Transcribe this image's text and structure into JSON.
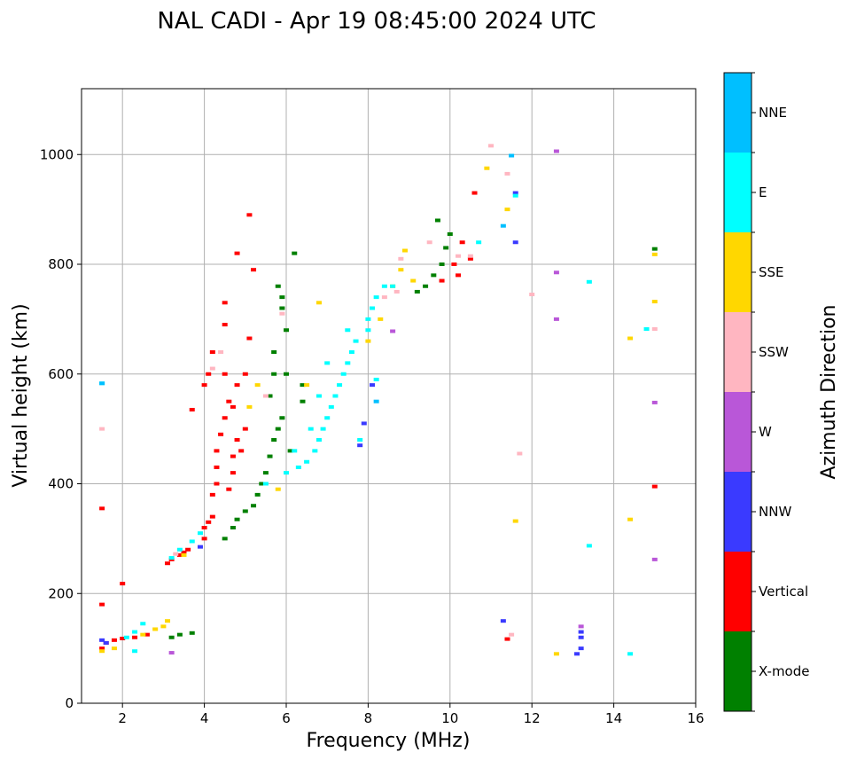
{
  "chart_data": {
    "type": "scatter",
    "title": "NAL CADI - Apr 19 08:45:00 2024 UTC",
    "xlabel": "Frequency (MHz)",
    "ylabel": "Virtual height (km)",
    "xlim": [
      1,
      16
    ],
    "ylim": [
      0,
      1120
    ],
    "xticks": [
      2,
      4,
      6,
      8,
      10,
      12,
      14,
      16
    ],
    "yticks": [
      0,
      200,
      400,
      600,
      800,
      1000
    ],
    "grid": true,
    "colorbar": {
      "label": "Azimuth Direction",
      "categories": [
        {
          "name": "X-mode",
          "color": "#008000"
        },
        {
          "name": "Vertical",
          "color": "#ff0000"
        },
        {
          "name": "NNW",
          "color": "#3a3aff"
        },
        {
          "name": "W",
          "color": "#b957d8"
        },
        {
          "name": "SSW",
          "color": "#ffb6c1"
        },
        {
          "name": "SSE",
          "color": "#ffd700"
        },
        {
          "name": "E",
          "color": "#00ffff"
        },
        {
          "name": "NNE",
          "color": "#00bfff"
        }
      ]
    },
    "series": [
      {
        "name": "Vertical",
        "points": [
          [
            1.5,
            100
          ],
          [
            1.6,
            110
          ],
          [
            1.8,
            115
          ],
          [
            2,
            118
          ],
          [
            2.3,
            120
          ],
          [
            2.6,
            125
          ],
          [
            3.1,
            255
          ],
          [
            3.2,
            262
          ],
          [
            3.4,
            270
          ],
          [
            3.5,
            275
          ],
          [
            3.6,
            280
          ],
          [
            4,
            300
          ],
          [
            4,
            320
          ],
          [
            4.1,
            330
          ],
          [
            4.2,
            340
          ],
          [
            4.2,
            380
          ],
          [
            4.3,
            400
          ],
          [
            4.3,
            430
          ],
          [
            4.3,
            460
          ],
          [
            4.4,
            490
          ],
          [
            4.6,
            390
          ],
          [
            4.7,
            420
          ],
          [
            4.7,
            450
          ],
          [
            4.8,
            480
          ],
          [
            4.9,
            460
          ],
          [
            4.5,
            520
          ],
          [
            4.7,
            540
          ],
          [
            4.8,
            580
          ],
          [
            5,
            600
          ],
          [
            4,
            580
          ],
          [
            4.1,
            600
          ],
          [
            4.2,
            640
          ],
          [
            4.5,
            600
          ],
          [
            4.5,
            730
          ],
          [
            4.5,
            690
          ],
          [
            4.8,
            820
          ],
          [
            5.1,
            890
          ],
          [
            5.1,
            665
          ],
          [
            5.2,
            790
          ],
          [
            4.6,
            550
          ],
          [
            5,
            500
          ],
          [
            3.7,
            535
          ],
          [
            10.1,
            800
          ],
          [
            10.3,
            840
          ],
          [
            10.2,
            780
          ],
          [
            9.8,
            770
          ],
          [
            10.5,
            810
          ],
          [
            10.6,
            930
          ],
          [
            1.5,
            355
          ],
          [
            2,
            218
          ],
          [
            1.5,
            180
          ],
          [
            11.4,
            117
          ],
          [
            15,
            395
          ]
        ]
      },
      {
        "name": "X-mode",
        "points": [
          [
            3.2,
            120
          ],
          [
            3.4,
            125
          ],
          [
            3.7,
            128
          ],
          [
            4.5,
            300
          ],
          [
            4.7,
            320
          ],
          [
            4.8,
            335
          ],
          [
            5,
            350
          ],
          [
            5.2,
            360
          ],
          [
            5.3,
            380
          ],
          [
            5.4,
            400
          ],
          [
            5.5,
            420
          ],
          [
            5.6,
            450
          ],
          [
            5.7,
            480
          ],
          [
            5.8,
            500
          ],
          [
            5.9,
            520
          ],
          [
            5.6,
            560
          ],
          [
            5.7,
            600
          ],
          [
            5.7,
            640
          ],
          [
            6,
            680
          ],
          [
            5.9,
            720
          ],
          [
            5.8,
            760
          ],
          [
            5.9,
            740
          ],
          [
            6.2,
            820
          ],
          [
            6.4,
            580
          ],
          [
            6.4,
            550
          ],
          [
            6,
            600
          ],
          [
            9.2,
            750
          ],
          [
            9.4,
            760
          ],
          [
            9.6,
            780
          ],
          [
            9.8,
            800
          ],
          [
            9.9,
            830
          ],
          [
            10,
            855
          ],
          [
            9.7,
            880
          ],
          [
            15,
            828
          ],
          [
            6.1,
            460
          ]
        ]
      },
      {
        "name": "NNW",
        "points": [
          [
            1.5,
            115
          ],
          [
            1.6,
            110
          ],
          [
            3.9,
            285
          ],
          [
            7.8,
            470
          ],
          [
            8.1,
            580
          ],
          [
            7.9,
            510
          ],
          [
            11.6,
            840
          ],
          [
            11.3,
            150
          ],
          [
            13.2,
            120
          ],
          [
            13.2,
            100
          ],
          [
            13.2,
            130
          ],
          [
            13.1,
            90
          ],
          [
            11.6,
            930
          ]
        ]
      },
      {
        "name": "W",
        "points": [
          [
            12.6,
            1006
          ],
          [
            12.6,
            785
          ],
          [
            12.6,
            700
          ],
          [
            13.2,
            140
          ],
          [
            15,
            548
          ],
          [
            15,
            262
          ],
          [
            3.2,
            92
          ],
          [
            8.6,
            678
          ]
        ]
      },
      {
        "name": "SSW",
        "points": [
          [
            3.3,
            272
          ],
          [
            4.2,
            610
          ],
          [
            4.4,
            640
          ],
          [
            5.5,
            560
          ],
          [
            8.4,
            740
          ],
          [
            8.7,
            750
          ],
          [
            9.5,
            840
          ],
          [
            10.2,
            815
          ],
          [
            10.5,
            815
          ],
          [
            11,
            1016
          ],
          [
            11.4,
            965
          ],
          [
            11.7,
            455
          ],
          [
            12,
            745
          ],
          [
            11.5,
            125
          ],
          [
            15,
            682
          ],
          [
            1.5,
            500
          ],
          [
            5.9,
            710
          ],
          [
            8.8,
            810
          ]
        ]
      },
      {
        "name": "SSE",
        "points": [
          [
            1.5,
            95
          ],
          [
            1.8,
            100
          ],
          [
            2.5,
            125
          ],
          [
            2.8,
            135
          ],
          [
            3,
            140
          ],
          [
            3.1,
            150
          ],
          [
            3.5,
            270
          ],
          [
            5.1,
            540
          ],
          [
            5.3,
            580
          ],
          [
            5.8,
            390
          ],
          [
            6.5,
            580
          ],
          [
            6.8,
            730
          ],
          [
            8,
            660
          ],
          [
            8.6,
            760
          ],
          [
            8.8,
            790
          ],
          [
            8.9,
            825
          ],
          [
            9.1,
            770
          ],
          [
            10.9,
            975
          ],
          [
            11.4,
            900
          ],
          [
            11.6,
            332
          ],
          [
            12.6,
            90
          ],
          [
            14.4,
            665
          ],
          [
            14.4,
            335
          ],
          [
            15,
            818
          ],
          [
            15,
            732
          ],
          [
            8.3,
            700
          ]
        ]
      },
      {
        "name": "E",
        "points": [
          [
            1.5,
            583
          ],
          [
            2.1,
            120
          ],
          [
            2.3,
            130
          ],
          [
            2.5,
            145
          ],
          [
            2.3,
            95
          ],
          [
            3.2,
            265
          ],
          [
            3.4,
            280
          ],
          [
            3.7,
            295
          ],
          [
            3.9,
            310
          ],
          [
            5.5,
            400
          ],
          [
            6,
            420
          ],
          [
            6.3,
            430
          ],
          [
            6.5,
            440
          ],
          [
            6.7,
            460
          ],
          [
            6.8,
            480
          ],
          [
            6.9,
            500
          ],
          [
            7,
            520
          ],
          [
            7.1,
            540
          ],
          [
            7.2,
            560
          ],
          [
            7.3,
            580
          ],
          [
            7.4,
            600
          ],
          [
            7.5,
            620
          ],
          [
            7.6,
            640
          ],
          [
            7.7,
            660
          ],
          [
            7.5,
            680
          ],
          [
            7,
            620
          ],
          [
            6.8,
            560
          ],
          [
            6.6,
            500
          ],
          [
            7.8,
            480
          ],
          [
            8,
            680
          ],
          [
            8,
            700
          ],
          [
            8.1,
            720
          ],
          [
            8.2,
            740
          ],
          [
            8.4,
            760
          ],
          [
            8.6,
            760
          ],
          [
            8.2,
            590
          ],
          [
            10.7,
            840
          ],
          [
            11.6,
            925
          ],
          [
            13.4,
            768
          ],
          [
            13.4,
            287
          ],
          [
            14.4,
            90
          ],
          [
            14.8,
            682
          ],
          [
            6.2,
            460
          ]
        ]
      },
      {
        "name": "NNE",
        "points": [
          [
            1.5,
            583
          ],
          [
            11.5,
            998
          ],
          [
            8.2,
            550
          ],
          [
            11.3,
            870
          ]
        ]
      }
    ]
  }
}
